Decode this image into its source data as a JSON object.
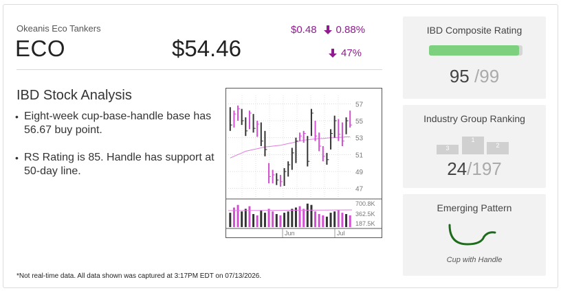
{
  "company": {
    "name": "Okeanis Eco Tankers",
    "ticker": "ECO",
    "price": "$54.46",
    "change_amount": "$0.48",
    "change_percent": "0.88%",
    "volume_change": "47%"
  },
  "analysis": {
    "title": "IBD Stock Analysis",
    "bullets": [
      "Eight-week cup-base-handle base has 56.67 buy point.",
      "RS Rating is 85. Handle has support at 50-day line."
    ]
  },
  "footnote": "*Not real-time data. All data shown was captured at 3:17PM EDT on 07/13/2026.",
  "composite": {
    "title": "IBD Composite Rating",
    "score": "95",
    "max": "99",
    "fraction": 0.9596
  },
  "industry": {
    "title": "Industry Group Ranking",
    "rank": "24",
    "total": "197",
    "podium": [
      "3",
      "1",
      "2"
    ]
  },
  "pattern": {
    "title": "Emerging Pattern",
    "name": "Cup with Handle"
  },
  "colors": {
    "accent": "#8e1c8e",
    "up_bar": "#d24fd2",
    "down_bar": "#333333",
    "ma_line": "#e07ae0",
    "rating_green": "#7dd07d",
    "cup_green": "#1e6b1e"
  },
  "chart_data": {
    "type": "bar",
    "price_axis": {
      "ticks": [
        "57",
        "55",
        "53",
        "51",
        "49",
        "47"
      ],
      "ylim": [
        46,
        58
      ]
    },
    "volume_axis": {
      "ticks": [
        "700.8K",
        "362.5K",
        "187.5K"
      ]
    },
    "x_labels": [
      "Jun",
      "Jul"
    ],
    "bars": [
      {
        "h": 56.6,
        "l": 53.8,
        "c": 54.5,
        "up": false,
        "v": 0.55
      },
      {
        "h": 56.2,
        "l": 54.2,
        "c": 55.8,
        "up": true,
        "v": 0.75
      },
      {
        "h": 56.8,
        "l": 55.0,
        "c": 56.4,
        "up": true,
        "v": 0.85
      },
      {
        "h": 56.4,
        "l": 54.5,
        "c": 55.0,
        "up": false,
        "v": 0.6
      },
      {
        "h": 55.4,
        "l": 53.2,
        "c": 53.8,
        "up": false,
        "v": 0.7
      },
      {
        "h": 56.2,
        "l": 54.0,
        "c": 55.9,
        "up": true,
        "v": 0.8
      },
      {
        "h": 55.8,
        "l": 53.6,
        "c": 54.1,
        "up": false,
        "v": 0.5
      },
      {
        "h": 55.0,
        "l": 53.1,
        "c": 54.6,
        "up": true,
        "v": 0.45
      },
      {
        "h": 54.8,
        "l": 52.0,
        "c": 52.6,
        "up": false,
        "v": 0.65
      },
      {
        "h": 53.8,
        "l": 50.8,
        "c": 51.6,
        "up": false,
        "v": 0.55
      },
      {
        "h": 50.0,
        "l": 47.6,
        "c": 48.4,
        "up": true,
        "v": 0.7
      },
      {
        "h": 49.2,
        "l": 47.6,
        "c": 48.6,
        "up": true,
        "v": 0.6
      },
      {
        "h": 48.8,
        "l": 47.4,
        "c": 48.0,
        "up": false,
        "v": 0.5
      },
      {
        "h": 48.6,
        "l": 47.2,
        "c": 47.8,
        "up": true,
        "v": 0.45
      },
      {
        "h": 49.4,
        "l": 47.3,
        "c": 49.0,
        "up": false,
        "v": 0.55
      },
      {
        "h": 50.2,
        "l": 48.4,
        "c": 49.8,
        "up": false,
        "v": 0.6
      },
      {
        "h": 51.8,
        "l": 49.2,
        "c": 51.2,
        "up": false,
        "v": 0.7
      },
      {
        "h": 53.0,
        "l": 50.0,
        "c": 52.6,
        "up": false,
        "v": 0.75
      },
      {
        "h": 53.6,
        "l": 52.6,
        "c": 53.2,
        "up": true,
        "v": 0.8
      },
      {
        "h": 53.8,
        "l": 52.4,
        "c": 53.5,
        "up": true,
        "v": 0.7
      },
      {
        "h": 53.2,
        "l": 49.6,
        "c": 50.2,
        "up": false,
        "v": 0.9
      },
      {
        "h": 56.4,
        "l": 53.2,
        "c": 55.9,
        "up": false,
        "v": 0.85
      },
      {
        "h": 55.0,
        "l": 52.6,
        "c": 53.2,
        "up": true,
        "v": 0.6
      },
      {
        "h": 53.6,
        "l": 51.4,
        "c": 52.0,
        "up": true,
        "v": 0.5
      },
      {
        "h": 52.0,
        "l": 50.2,
        "c": 50.8,
        "up": true,
        "v": 0.45
      },
      {
        "h": 51.2,
        "l": 49.8,
        "c": 50.4,
        "up": false,
        "v": 0.4
      },
      {
        "h": 54.0,
        "l": 51.6,
        "c": 53.5,
        "up": false,
        "v": 0.55
      },
      {
        "h": 55.6,
        "l": 53.0,
        "c": 55.0,
        "up": false,
        "v": 0.6
      },
      {
        "h": 55.2,
        "l": 52.6,
        "c": 53.4,
        "up": true,
        "v": 0.65
      },
      {
        "h": 54.8,
        "l": 52.0,
        "c": 52.6,
        "up": true,
        "v": 0.55
      },
      {
        "h": 55.4,
        "l": 53.4,
        "c": 55.0,
        "up": false,
        "v": 0.5
      },
      {
        "h": 56.2,
        "l": 54.2,
        "c": 54.5,
        "up": true,
        "v": 0.45
      }
    ],
    "ma": [
      50.6,
      50.8,
      51.0,
      51.2,
      51.4,
      51.5,
      51.6,
      51.7,
      51.8,
      51.9,
      51.95,
      52.0,
      52.05,
      52.1,
      52.2,
      52.3,
      52.4,
      52.5,
      52.6,
      52.7,
      52.75,
      52.8,
      52.85,
      52.9,
      52.9,
      52.95,
      53.0,
      53.0,
      53.05,
      53.05,
      53.1,
      53.1
    ]
  }
}
